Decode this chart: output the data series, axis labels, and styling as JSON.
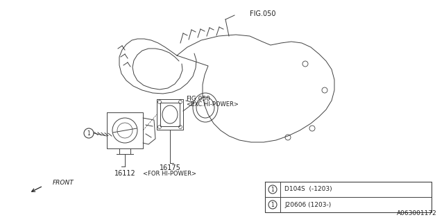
{
  "bg_color": "#ffffff",
  "line_color": "#404040",
  "text_color": "#202020",
  "fig_width": 6.4,
  "fig_height": 3.2,
  "dpi": 100,
  "labels": {
    "fig050_top": "FIG.050",
    "fig050_mid": "FIG.050",
    "fig050_mid_sub": "<EXC.HI-POWER>",
    "part16112": "16112",
    "part16175": "16175",
    "part16175_sub": "<FOR HI-POWER>",
    "front": "FRONT",
    "ref_code": "A063001172",
    "table_row1_val": "D104S  (-1203)",
    "table_row2_val": "J20606 (1203-)"
  }
}
